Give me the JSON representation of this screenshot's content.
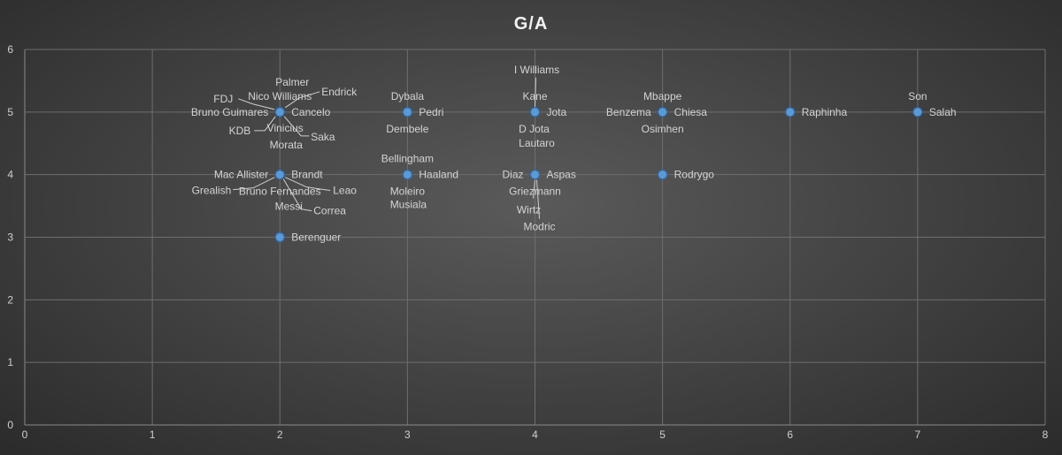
{
  "chart_data": {
    "type": "scatter",
    "title": "G/A",
    "xlabel": "",
    "ylabel": "",
    "xlim": [
      0,
      8
    ],
    "ylim": [
      0,
      6
    ],
    "x_ticks": [
      "0",
      "1",
      "2",
      "3",
      "4",
      "5",
      "6",
      "7",
      "8"
    ],
    "y_ticks": [
      "0",
      "1",
      "2",
      "3",
      "4",
      "5",
      "6"
    ],
    "grid": true,
    "legend": "none",
    "marker_color": "#5b9bd5",
    "points": [
      {
        "name": "Palmer",
        "x": 2,
        "y": 5
      },
      {
        "name": "Nico Williams",
        "x": 2,
        "y": 5
      },
      {
        "name": "Endrick",
        "x": 2,
        "y": 5
      },
      {
        "name": "FDJ",
        "x": 2,
        "y": 5
      },
      {
        "name": "Bruno Guimares",
        "x": 2,
        "y": 5
      },
      {
        "name": "Cancelo",
        "x": 2,
        "y": 5
      },
      {
        "name": "KDB",
        "x": 2,
        "y": 5
      },
      {
        "name": "Vinicius",
        "x": 2,
        "y": 5
      },
      {
        "name": "Saka",
        "x": 2,
        "y": 5
      },
      {
        "name": "Morata",
        "x": 2,
        "y": 5
      },
      {
        "name": "Mac Allister",
        "x": 2,
        "y": 4
      },
      {
        "name": "Brandt",
        "x": 2,
        "y": 4
      },
      {
        "name": "Grealish",
        "x": 2,
        "y": 4
      },
      {
        "name": "Bruno Fernandes",
        "x": 2,
        "y": 4
      },
      {
        "name": "Leao",
        "x": 2,
        "y": 4
      },
      {
        "name": "Messi",
        "x": 2,
        "y": 4
      },
      {
        "name": "Correa",
        "x": 2,
        "y": 4
      },
      {
        "name": "Berenguer",
        "x": 2,
        "y": 3
      },
      {
        "name": "Dybala",
        "x": 3,
        "y": 5
      },
      {
        "name": "Pedri",
        "x": 3,
        "y": 5
      },
      {
        "name": "Dembele",
        "x": 3,
        "y": 5
      },
      {
        "name": "Bellingham",
        "x": 3,
        "y": 4
      },
      {
        "name": "Haaland",
        "x": 3,
        "y": 4
      },
      {
        "name": "Moleiro",
        "x": 3,
        "y": 4
      },
      {
        "name": "Musiala",
        "x": 3,
        "y": 4
      },
      {
        "name": "I Williams",
        "x": 4,
        "y": 5
      },
      {
        "name": "Kane",
        "x": 4,
        "y": 5
      },
      {
        "name": "Jota",
        "x": 4,
        "y": 5
      },
      {
        "name": "D Jota",
        "x": 4,
        "y": 5
      },
      {
        "name": "Lautaro",
        "x": 4,
        "y": 5
      },
      {
        "name": "Diaz",
        "x": 4,
        "y": 4
      },
      {
        "name": "Aspas",
        "x": 4,
        "y": 4
      },
      {
        "name": "Griezmann",
        "x": 4,
        "y": 4
      },
      {
        "name": "Wirtz",
        "x": 4,
        "y": 4
      },
      {
        "name": "Modric",
        "x": 4,
        "y": 4
      },
      {
        "name": "Mbappe",
        "x": 5,
        "y": 5
      },
      {
        "name": "Benzema",
        "x": 5,
        "y": 5
      },
      {
        "name": "Chiesa",
        "x": 5,
        "y": 5
      },
      {
        "name": "Osimhen",
        "x": 5,
        "y": 5
      },
      {
        "name": "Rodrygo",
        "x": 5,
        "y": 4
      },
      {
        "name": "Raphinha",
        "x": 6,
        "y": 5
      },
      {
        "name": "Son",
        "x": 7,
        "y": 5
      },
      {
        "name": "Salah",
        "x": 7,
        "y": 5
      }
    ]
  }
}
